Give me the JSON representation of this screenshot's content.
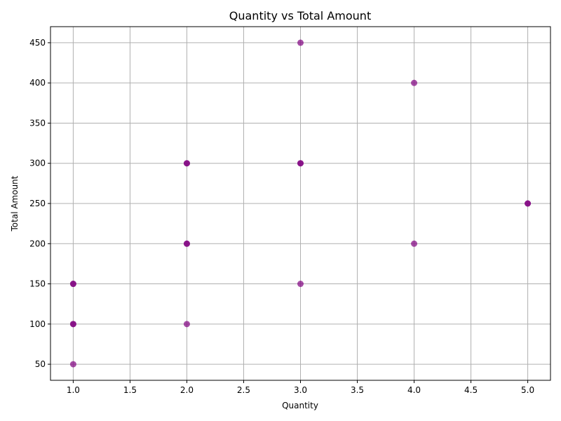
{
  "chart_data": {
    "type": "scatter",
    "title": "Quantity vs Total Amount",
    "xlabel": "Quantity",
    "ylabel": "Total Amount",
    "xlim": [
      0.8,
      5.2
    ],
    "ylim": [
      30,
      470
    ],
    "xticks": [
      1.0,
      1.5,
      2.0,
      2.5,
      3.0,
      3.5,
      4.0,
      4.5,
      5.0
    ],
    "xtick_labels": [
      "1.0",
      "1.5",
      "2.0",
      "2.5",
      "3.0",
      "3.5",
      "4.0",
      "4.5",
      "5.0"
    ],
    "yticks": [
      50,
      100,
      150,
      200,
      250,
      300,
      350,
      400,
      450
    ],
    "ytick_labels": [
      "50",
      "100",
      "150",
      "200",
      "250",
      "300",
      "350",
      "400",
      "450"
    ],
    "grid": true,
    "marker_color": "#800080",
    "marker_alpha": 0.7,
    "points": [
      {
        "x": 1,
        "y": 50
      },
      {
        "x": 1,
        "y": 100
      },
      {
        "x": 1,
        "y": 100
      },
      {
        "x": 1,
        "y": 150
      },
      {
        "x": 1,
        "y": 150
      },
      {
        "x": 2,
        "y": 100
      },
      {
        "x": 2,
        "y": 200
      },
      {
        "x": 2,
        "y": 200
      },
      {
        "x": 2,
        "y": 300
      },
      {
        "x": 2,
        "y": 300
      },
      {
        "x": 3,
        "y": 150
      },
      {
        "x": 3,
        "y": 300
      },
      {
        "x": 3,
        "y": 300
      },
      {
        "x": 3,
        "y": 450
      },
      {
        "x": 4,
        "y": 200
      },
      {
        "x": 4,
        "y": 400
      },
      {
        "x": 5,
        "y": 250
      },
      {
        "x": 5,
        "y": 250
      }
    ]
  }
}
